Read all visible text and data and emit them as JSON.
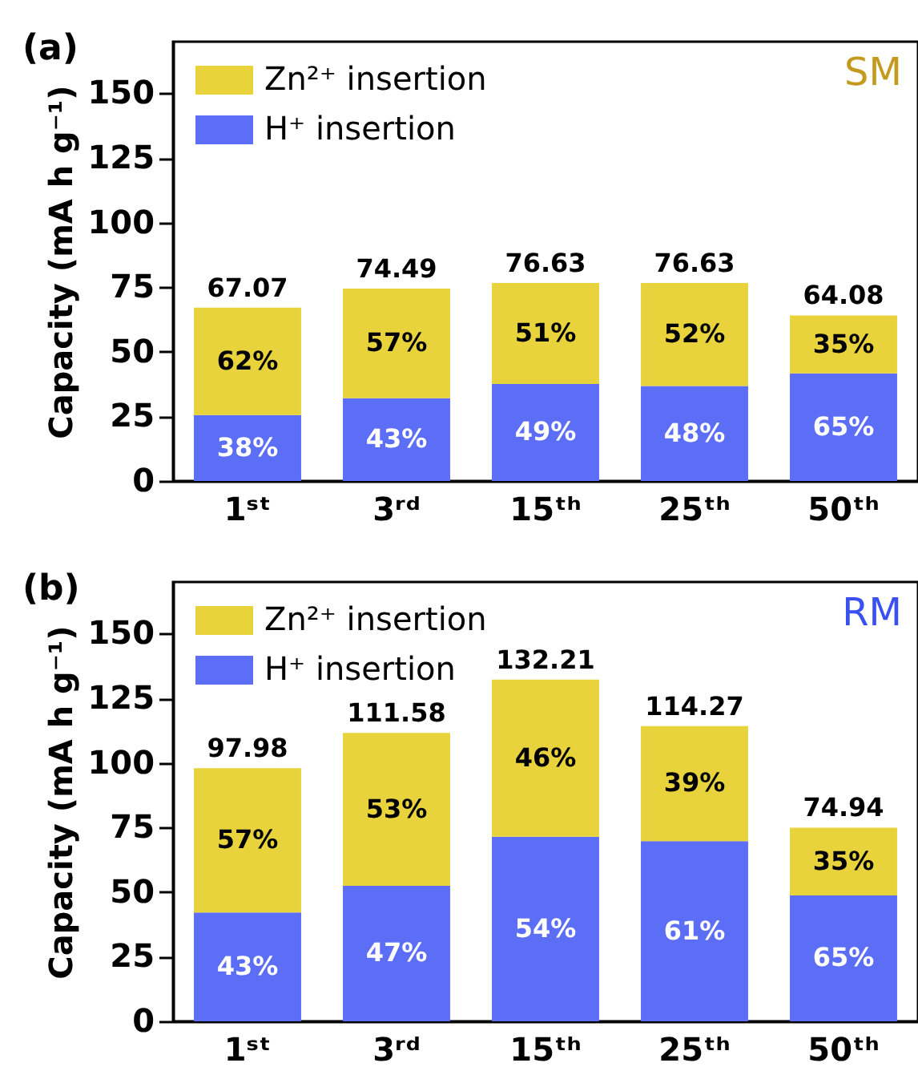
{
  "chart_data": [
    {
      "type": "bar",
      "title": "(a)",
      "ylabel": "Capacity (mA h g⁻¹)",
      "categories": [
        "1ˢᵗ",
        "3ʳᵈ",
        "15ᵗʰ",
        "25ᵗʰ",
        "50ᵗʰ"
      ],
      "stacked": true,
      "series": [
        {
          "name": "H⁺ insertion",
          "color": "#5b6ef5",
          "values": [
            25.49,
            32.03,
            37.55,
            36.78,
            41.65
          ]
        },
        {
          "name": "Zn²⁺ insertion",
          "color": "#e8d33d",
          "values": [
            41.58,
            42.46,
            39.08,
            39.85,
            22.43
          ]
        }
      ],
      "totals": [
        "67.07",
        "74.49",
        "76.63",
        "76.63",
        "64.08"
      ],
      "ylim": [
        0,
        170
      ],
      "yticks": [
        0,
        25,
        50,
        75,
        100,
        125,
        150
      ],
      "grid": false,
      "legend": "top left",
      "annotations": [
        "SM",
        {
          "text": "38%",
          "x": "1ˢᵗ",
          "y": 25.49
        },
        {
          "text": "43%",
          "x": "3ʳᵈ",
          "y": 32.03
        },
        {
          "text": "49%",
          "x": "15ᵗʰ",
          "y": 37.55
        },
        {
          "text": "48%",
          "x": "25ᵗʰ",
          "y": 36.78
        },
        {
          "text": "65%",
          "x": "50ᵗʰ",
          "y": 41.65
        },
        {
          "text": "62%",
          "x": "1ˢᵗ",
          "y": 67.07
        },
        {
          "text": "57%",
          "x": "3ʳᵈ",
          "y": 74.49
        },
        {
          "text": "51%",
          "x": "15ᵗʰ",
          "y": 76.63
        },
        {
          "text": "52%",
          "x": "25ᵗʰ",
          "y": 76.63
        },
        {
          "text": "35%",
          "x": "50ᵗʰ",
          "y": 64.08
        }
      ]
    },
    {
      "type": "bar",
      "title": "(b)",
      "ylabel": "Capacity (mA h g⁻¹)",
      "categories": [
        "1ˢᵗ",
        "3ʳᵈ",
        "15ᵗʰ",
        "25ᵗʰ",
        "50ᵗʰ"
      ],
      "stacked": true,
      "series": [
        {
          "name": "H⁺ insertion",
          "color": "#5b6ef5",
          "values": [
            42.13,
            52.44,
            71.39,
            69.7,
            48.71
          ]
        },
        {
          "name": "Zn²⁺ insertion",
          "color": "#e8d33d",
          "values": [
            55.85,
            59.14,
            60.82,
            44.57,
            26.23
          ]
        }
      ],
      "totals": [
        "97.98",
        "111.58",
        "132.21",
        "114.27",
        "74.94"
      ],
      "ylim": [
        0,
        170
      ],
      "yticks": [
        0,
        25,
        50,
        75,
        100,
        125,
        150
      ],
      "grid": false,
      "legend": "top left",
      "annotations": [
        "RM",
        {
          "text": "43%",
          "x": "1ˢᵗ",
          "y": 42.13
        },
        {
          "text": "47%",
          "x": "3ʳᵈ",
          "y": 52.44
        },
        {
          "text": "54%",
          "x": "15ᵗʰ",
          "y": 71.39
        },
        {
          "text": "61%",
          "x": "25ᵗʰ",
          "y": 69.7
        },
        {
          "text": "65%",
          "x": "50ᵗʰ",
          "y": 48.71
        },
        {
          "text": "57%",
          "x": "1ˢᵗ",
          "y": 97.98
        },
        {
          "text": "53%",
          "x": "3ʳᵈ",
          "y": 111.58
        },
        {
          "text": "46%",
          "x": "15ᵗʰ",
          "y": 132.21
        },
        {
          "text": "39%",
          "x": "25ᵗʰ",
          "y": 114.27
        },
        {
          "text": "35%",
          "x": "50ᵗʰ",
          "y": 74.94
        }
      ]
    }
  ]
}
